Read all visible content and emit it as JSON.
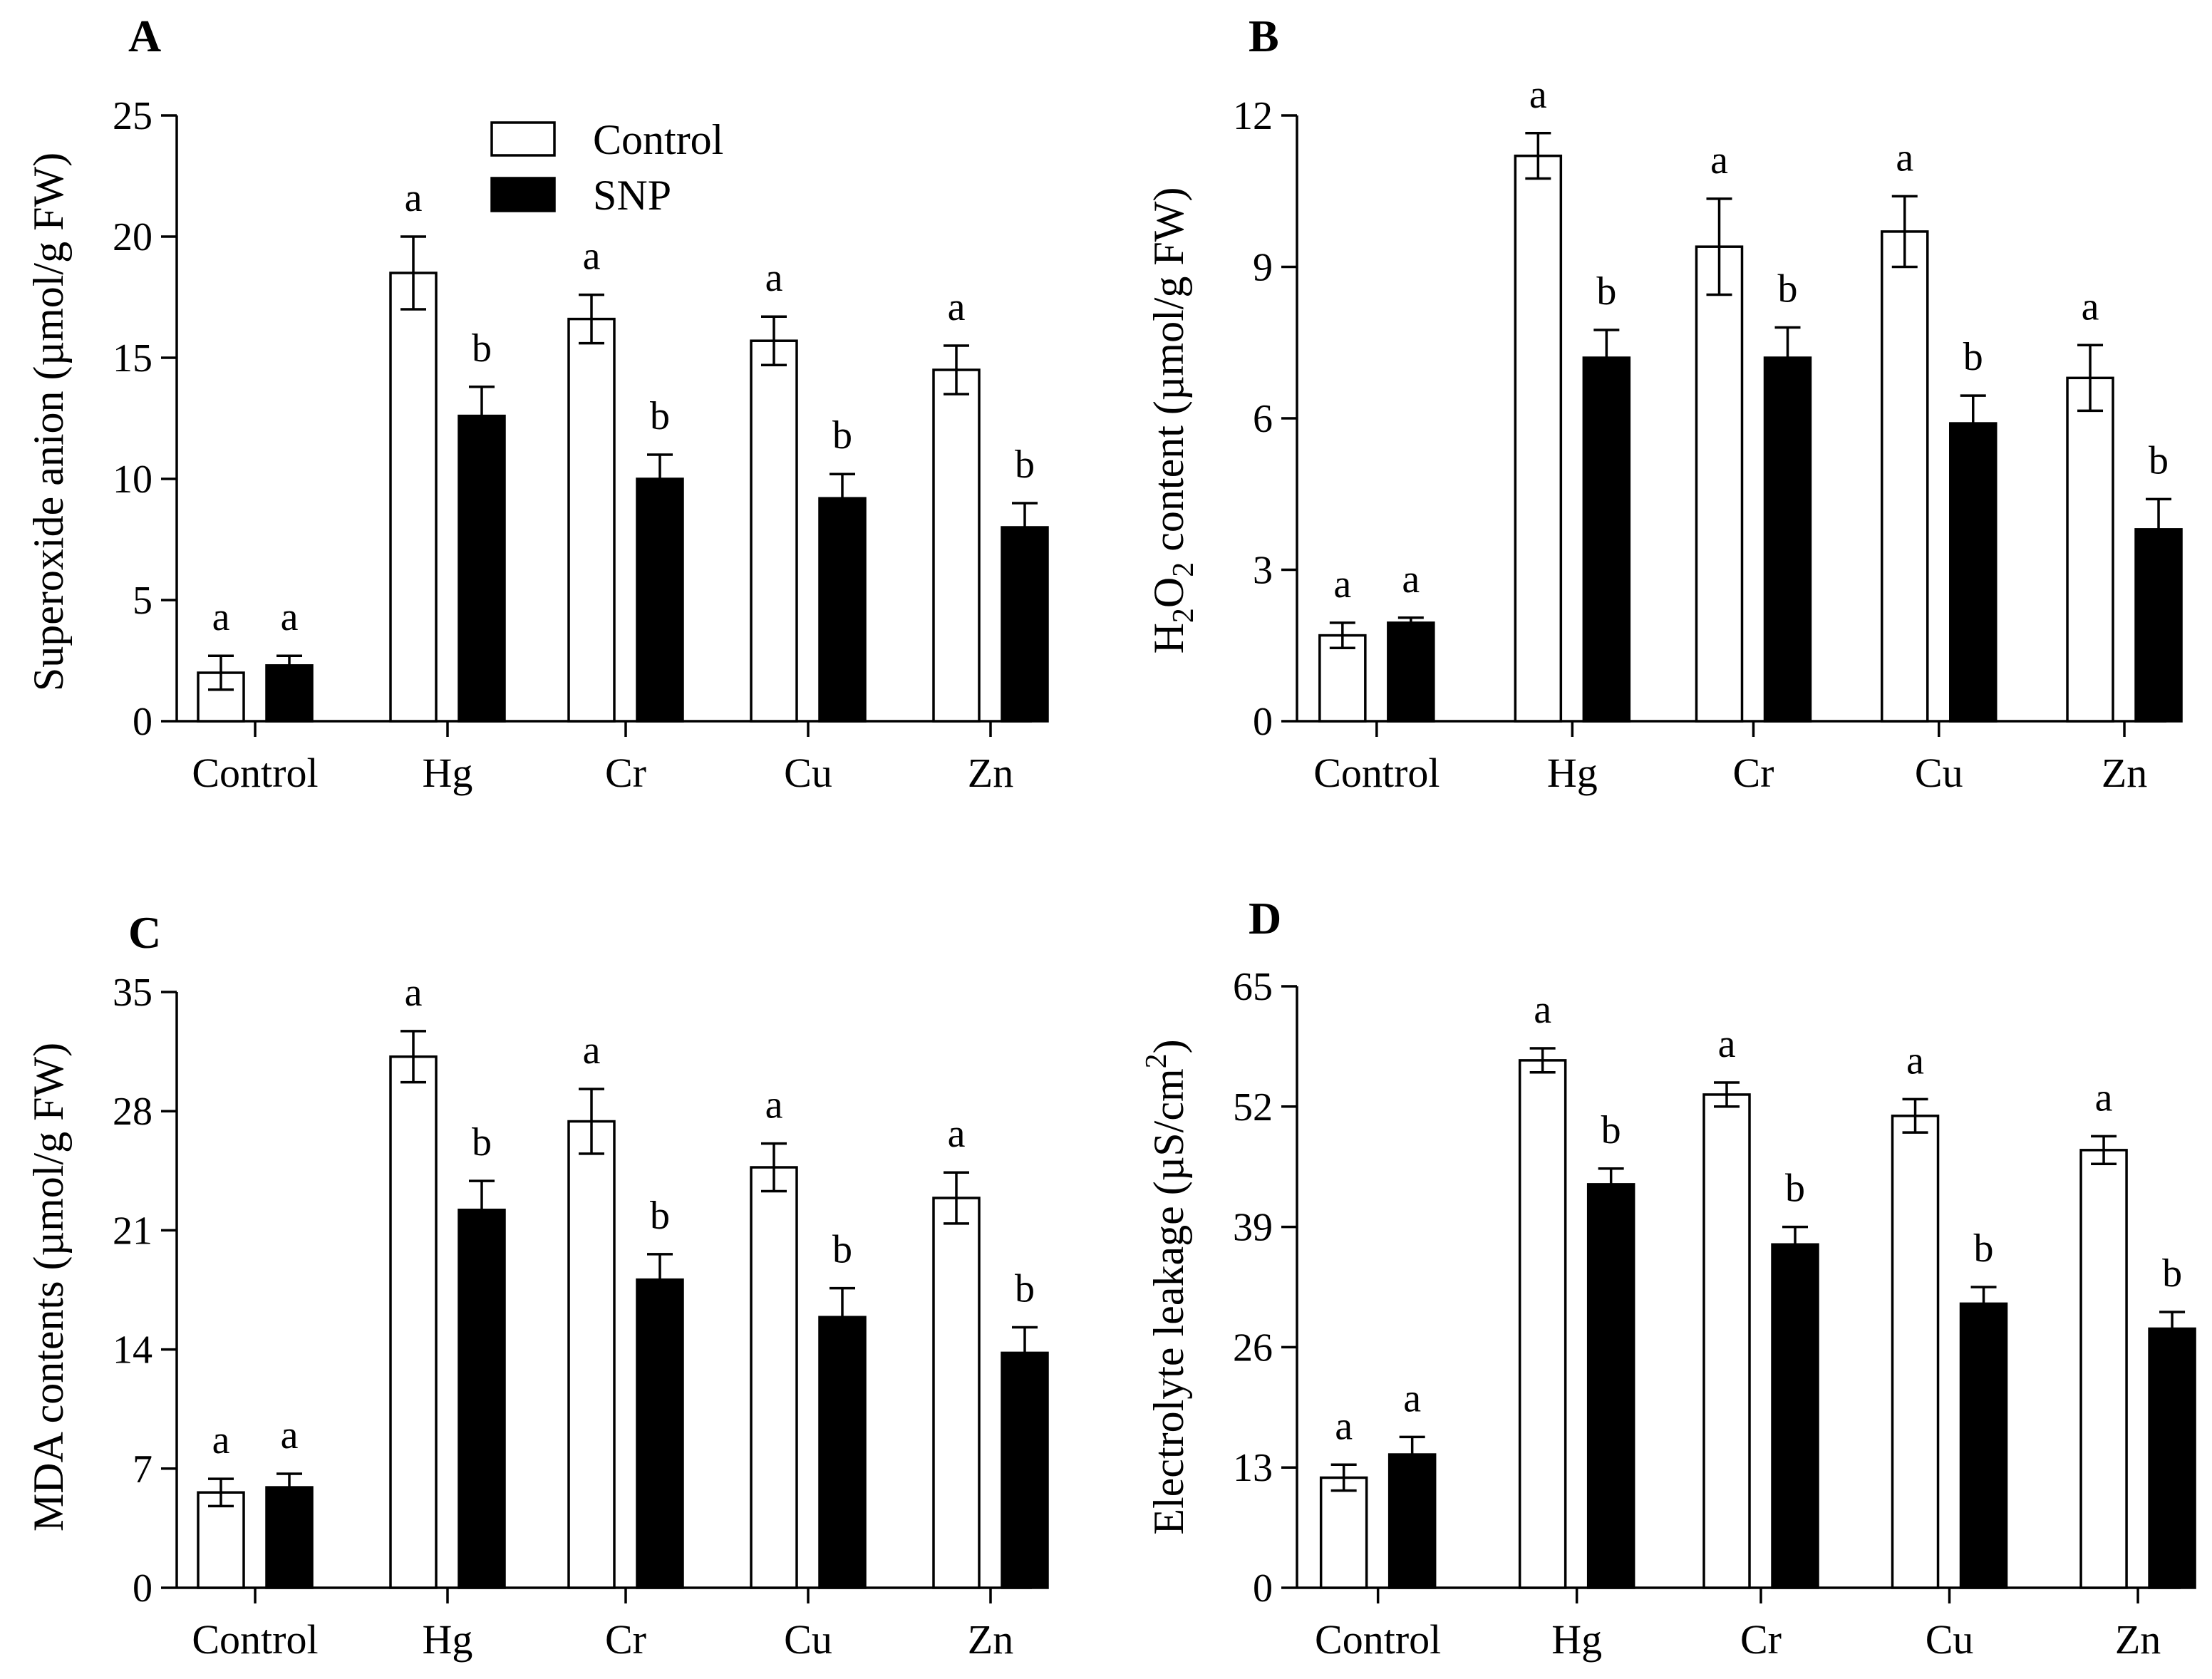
{
  "legend": {
    "items": [
      {
        "label": "Control",
        "color": "#ffffff"
      },
      {
        "label": "SNP",
        "color": "#000000"
      }
    ]
  },
  "chart_data": [
    {
      "panel": "A",
      "type": "bar",
      "categories": [
        "Control",
        "Hg",
        "Cr",
        "Cu",
        "Zn"
      ],
      "ylabel": "Superoxide anion (µmol/g FW)",
      "ylim": [
        0,
        25
      ],
      "yticks": [
        "0",
        "5",
        "10",
        "15",
        "20",
        "25"
      ],
      "series": [
        {
          "name": "Control",
          "values": [
            2.0,
            18.5,
            16.6,
            15.7,
            14.5
          ],
          "errors": [
            0.7,
            1.5,
            1.0,
            1.0,
            1.0
          ],
          "labels": [
            "a",
            "a",
            "a",
            "a",
            "a"
          ]
        },
        {
          "name": "SNP",
          "values": [
            2.3,
            12.6,
            10.0,
            9.2,
            8.0
          ],
          "errors": [
            0.4,
            1.2,
            1.0,
            1.0,
            1.0
          ],
          "labels": [
            "a",
            "b",
            "b",
            "b",
            "b"
          ]
        }
      ]
    },
    {
      "panel": "B",
      "type": "bar",
      "categories": [
        "Control",
        "Hg",
        "Cr",
        "Cu",
        "Zn"
      ],
      "ylabel_parts": [
        "H",
        "2",
        "O",
        "2",
        " content (µmol/g FW)"
      ],
      "ylim": [
        0,
        12
      ],
      "yticks": [
        "0",
        "3",
        "6",
        "9",
        "12"
      ],
      "series": [
        {
          "name": "Control",
          "values": [
            1.7,
            11.2,
            9.4,
            9.7,
            6.8
          ],
          "errors": [
            0.25,
            0.45,
            0.95,
            0.7,
            0.65
          ],
          "labels": [
            "a",
            "a",
            "a",
            "a",
            "a"
          ]
        },
        {
          "name": "SNP",
          "values": [
            1.95,
            7.2,
            7.2,
            5.9,
            3.8
          ],
          "errors": [
            0.1,
            0.55,
            0.6,
            0.55,
            0.6
          ],
          "labels": [
            "a",
            "b",
            "b",
            "b",
            "b"
          ]
        }
      ]
    },
    {
      "panel": "C",
      "type": "bar",
      "categories": [
        "Control",
        "Hg",
        "Cr",
        "Cu",
        "Zn"
      ],
      "ylabel": "MDA contents (µmol/g FW)",
      "ylim": [
        0,
        35
      ],
      "yticks": [
        "0",
        "7",
        "14",
        "21",
        "28",
        "35"
      ],
      "series": [
        {
          "name": "Control",
          "values": [
            5.6,
            31.2,
            27.4,
            24.7,
            22.9
          ],
          "errors": [
            0.8,
            1.5,
            1.9,
            1.4,
            1.5
          ],
          "labels": [
            "a",
            "a",
            "a",
            "a",
            "a"
          ]
        },
        {
          "name": "SNP",
          "values": [
            5.9,
            22.2,
            18.1,
            15.9,
            13.8
          ],
          "errors": [
            0.8,
            1.7,
            1.5,
            1.7,
            1.5
          ],
          "labels": [
            "a",
            "b",
            "b",
            "b",
            "b"
          ]
        }
      ]
    },
    {
      "panel": "D",
      "type": "bar",
      "categories": [
        "Control",
        "Hg",
        "Cr",
        "Cu",
        "Zn"
      ],
      "ylabel_parts": [
        "Electrolyte leakage (µS/cm",
        "2",
        ")"
      ],
      "ylim": [
        0,
        65
      ],
      "yticks": [
        "0",
        "13",
        "26",
        "39",
        "52",
        "65"
      ],
      "series": [
        {
          "name": "Control",
          "values": [
            11.9,
            57.0,
            53.3,
            51.0,
            47.3
          ],
          "errors": [
            1.4,
            1.3,
            1.3,
            1.8,
            1.5
          ],
          "labels": [
            "a",
            "a",
            "a",
            "a",
            "a"
          ]
        },
        {
          "name": "SNP",
          "values": [
            14.4,
            43.6,
            37.1,
            30.7,
            28.0
          ],
          "errors": [
            1.9,
            1.7,
            1.9,
            1.8,
            1.8
          ],
          "labels": [
            "a",
            "b",
            "b",
            "b",
            "b"
          ]
        }
      ]
    }
  ]
}
